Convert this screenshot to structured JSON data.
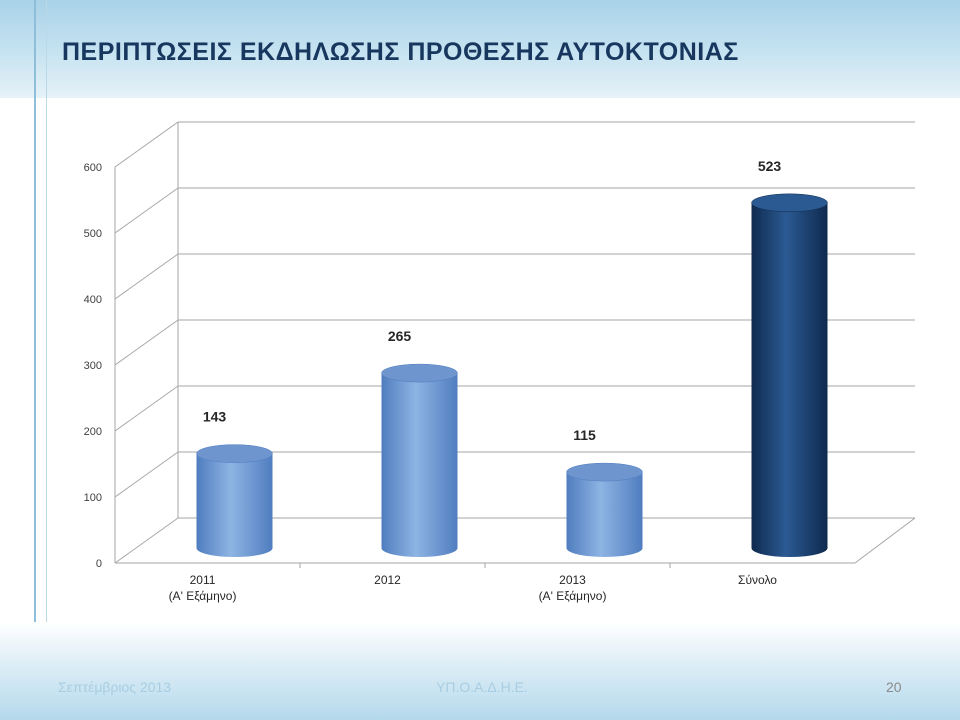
{
  "slide": {
    "title": "ΠΕΡΙΠΤΩΣΕΙΣ ΕΚΔΗΛΩΣΗΣ ΠΡΟΘΕΣΗΣ ΑΥΤΟΚΤΟΝΙΑΣ",
    "footer_date": "Σεπτέμβριος 2013",
    "footer_org": "ΥΠ.Ο.Α.Δ.Η.Ε.",
    "page_number": "20"
  },
  "chart_data": {
    "type": "bar",
    "style": "3d-cylinder",
    "title": "",
    "xlabel": "",
    "ylabel": "",
    "ylim": [
      0,
      600
    ],
    "yticks": [
      0,
      100,
      200,
      300,
      400,
      500,
      600
    ],
    "grid": true,
    "legend": "none",
    "categories": [
      [
        "2011",
        "(Α' Εξάμηνο)"
      ],
      [
        "2012"
      ],
      [
        "2013",
        "(Α' Εξάμηνο)"
      ],
      [
        "Σύνολο"
      ]
    ],
    "values": [
      143,
      265,
      115,
      523
    ],
    "data_labels": [
      "143",
      "265",
      "115",
      "523"
    ],
    "colors": {
      "light_bar": "#8eb4e3",
      "light_bar_dark": "#4f7dbf",
      "light_bar_top": "#6f95cf",
      "total_bar": "#1f497d",
      "total_bar_dark": "#0f2a4e",
      "total_bar_top": "#2b5a93",
      "grid": "#a6a6a6",
      "axis_text": "#404040",
      "label_text": "#262626"
    }
  }
}
